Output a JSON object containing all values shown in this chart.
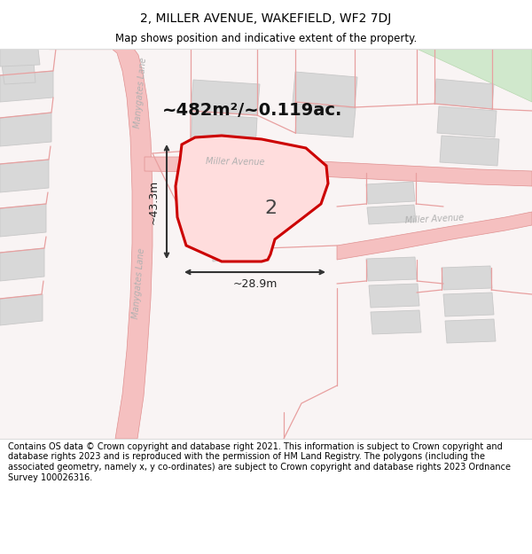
{
  "title": "2, MILLER AVENUE, WAKEFIELD, WF2 7DJ",
  "subtitle": "Map shows position and indicative extent of the property.",
  "footer": "Contains OS data © Crown copyright and database right 2021. This information is subject to Crown copyright and database rights 2023 and is reproduced with the permission of HM Land Registry. The polygons (including the associated geometry, namely x, y co-ordinates) are subject to Crown copyright and database rights 2023 Ordnance Survey 100026316.",
  "area_text": "~482m²/~0.119ac.",
  "label_number": "2",
  "dim_width": "~28.9m",
  "dim_height": "~43.3m",
  "bg_color": "#ffffff",
  "road_color": "#f5c0c0",
  "road_edge": "#e09090",
  "building_color": "#d8d8d8",
  "building_edge": "#c8c8c8",
  "plot_stroke": "#cc0000",
  "plot_fill": "#ffdddd",
  "green_color": "#d0e8cc",
  "line_color": "#e8a0a0",
  "title_fontsize": 10,
  "subtitle_fontsize": 8.5,
  "footer_fontsize": 7,
  "area_fontsize": 14,
  "label_fontsize": 16,
  "dim_fontsize": 9,
  "road_label_fontsize": 7,
  "road_label_color": "#b0b0b0"
}
